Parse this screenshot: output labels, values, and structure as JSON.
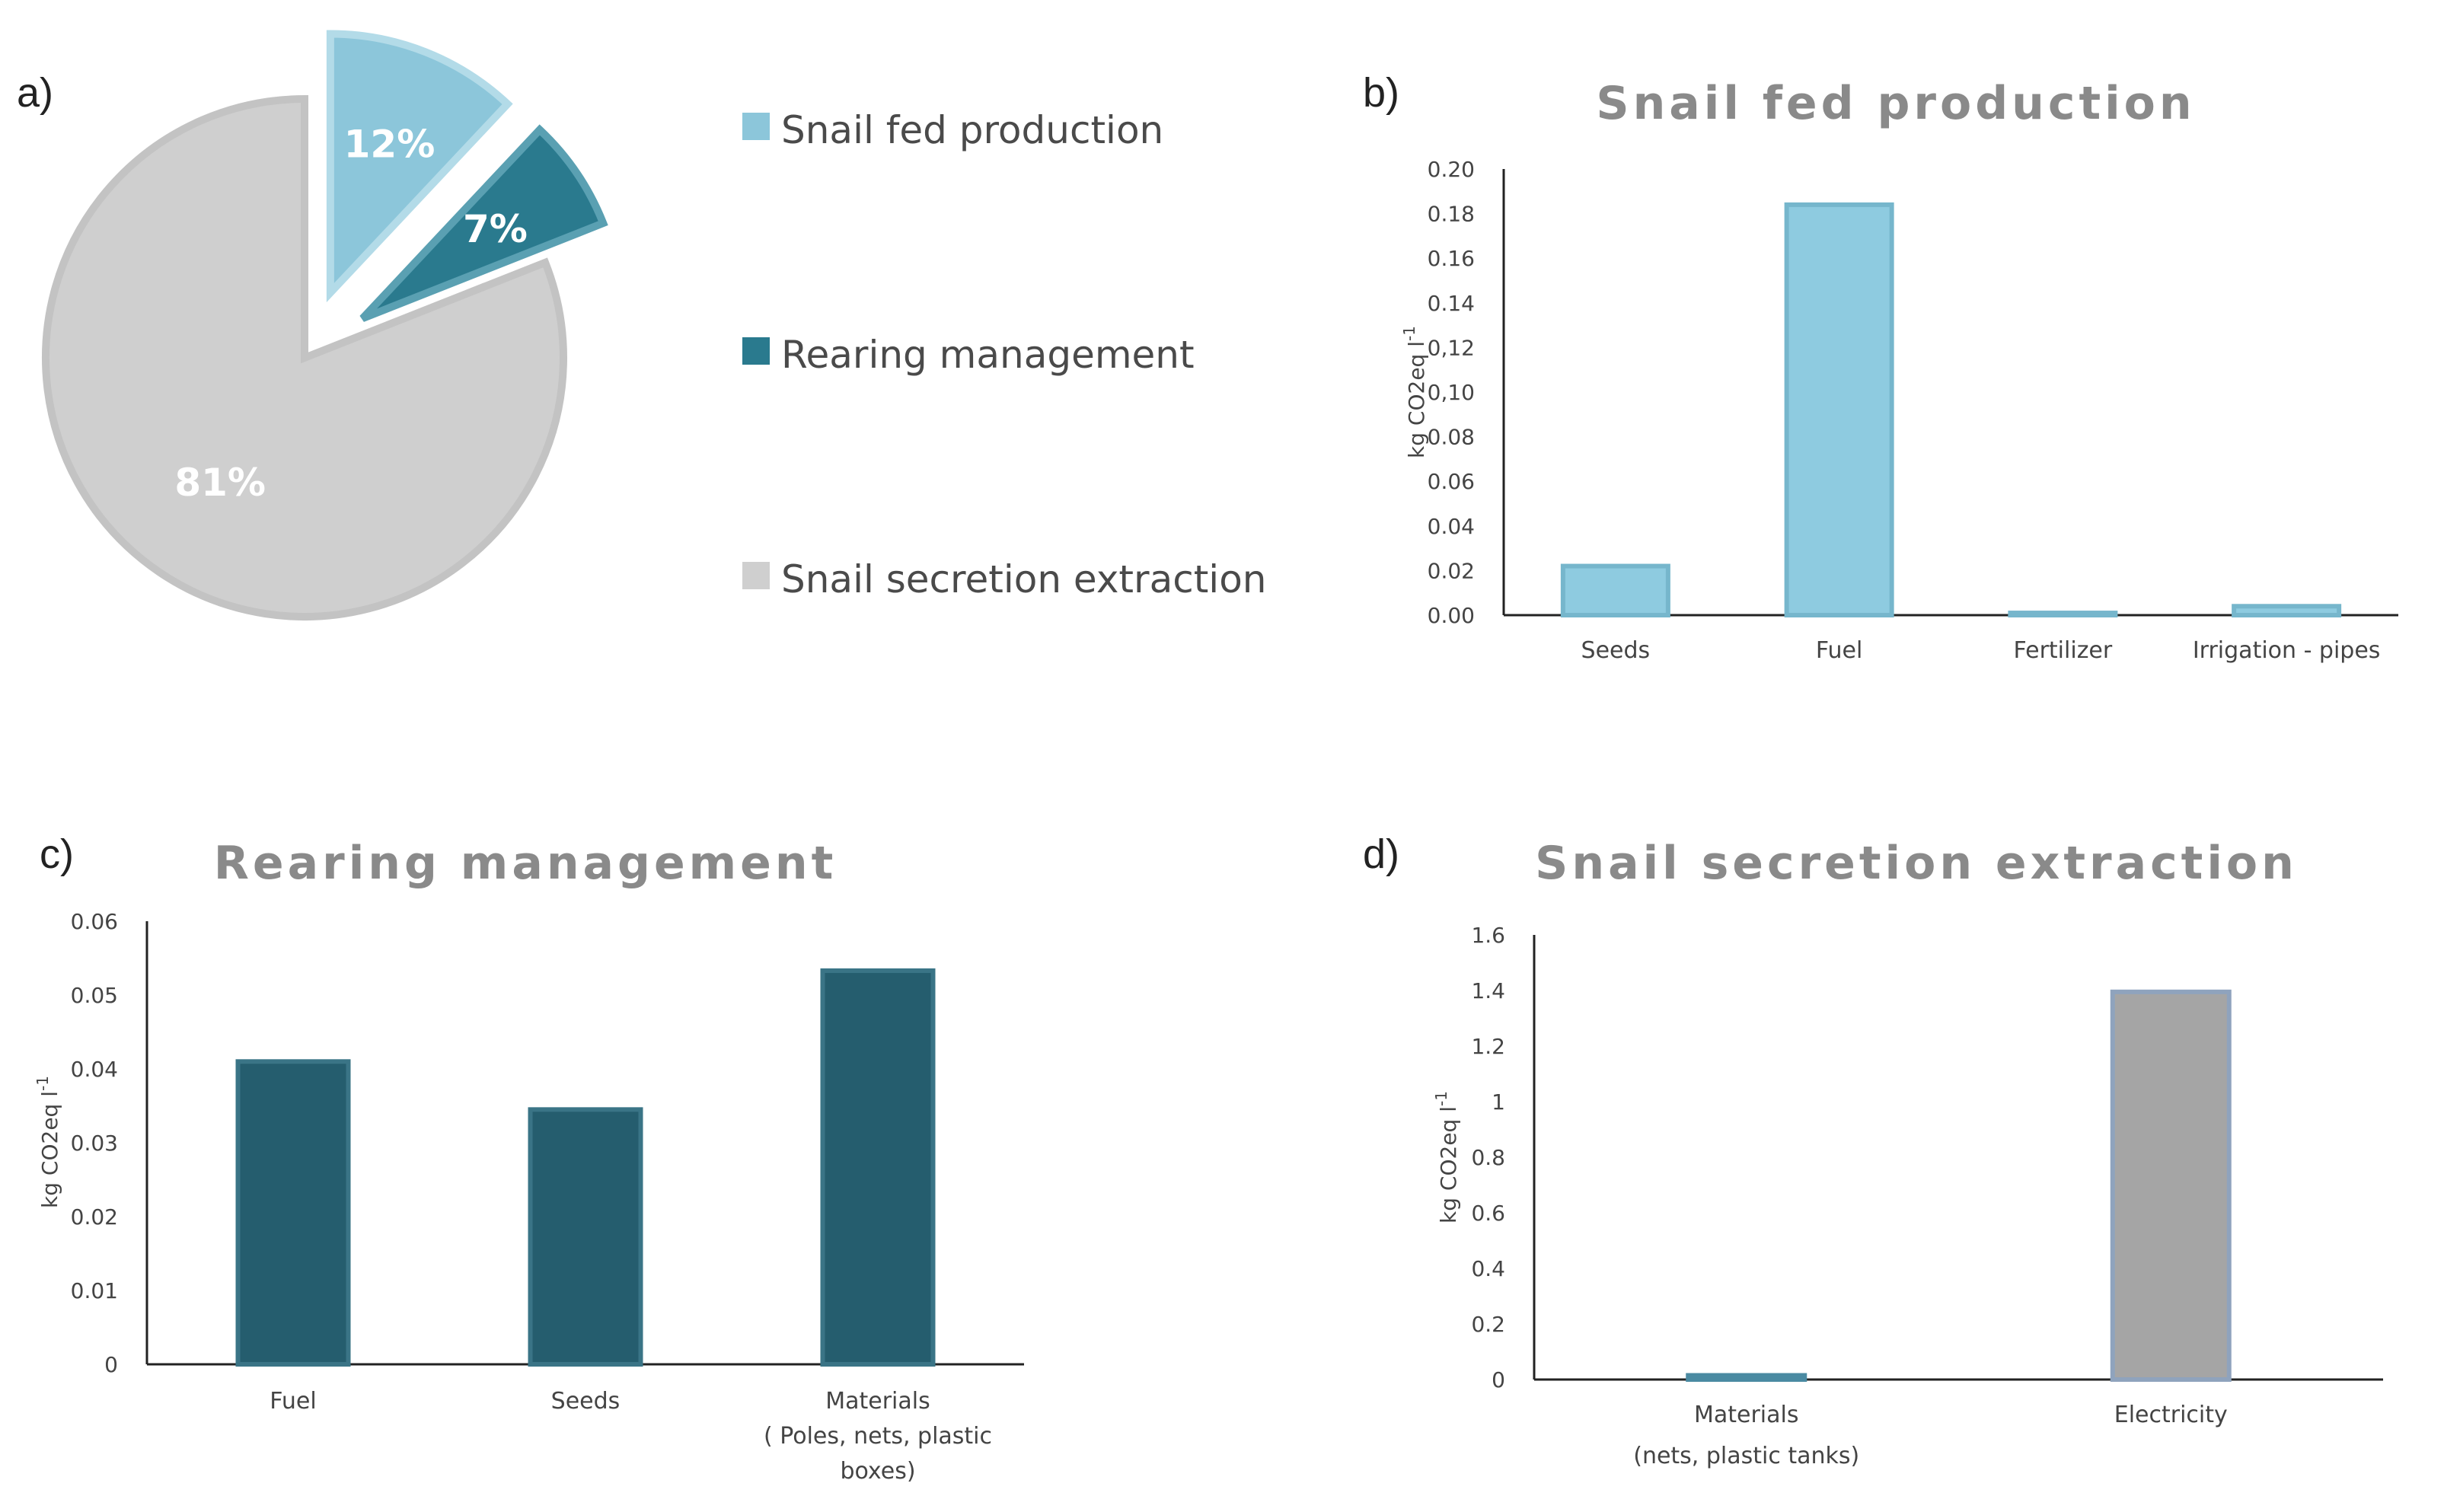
{
  "panels": {
    "a": "a)",
    "b": "b)",
    "c": "c)",
    "d": "d)"
  },
  "colors": {
    "light_blue": "#8cc6da",
    "teal": "#2a7a8e",
    "dark_teal": "#255d6e",
    "grey": "#cfcfcf",
    "grey_bar": "#a5a5a5"
  },
  "chart_data": [
    {
      "id": "pie",
      "type": "pie",
      "title": "",
      "slices": [
        {
          "name": "Snail fed production",
          "label": "12%",
          "value": 12,
          "color": "#8cc6da",
          "stroke": "#b3dbe8",
          "exploded": true
        },
        {
          "name": "Rearing management",
          "label": "7%",
          "value": 7,
          "color": "#2a7a8e",
          "stroke": "#5aa0b2",
          "exploded": true
        },
        {
          "name": "Snail secretion extraction",
          "label": "81%",
          "value": 81,
          "color": "#cfcfcf",
          "stroke": "#c3c3c3",
          "exploded": false
        }
      ],
      "legend": [
        {
          "label": "Snail fed production",
          "color": "#8cc6da"
        },
        {
          "label": "Rearing management",
          "color": "#2a7a8e"
        },
        {
          "label": "Snail secretion extraction",
          "color": "#cfcfcf"
        }
      ]
    },
    {
      "id": "b",
      "type": "bar",
      "title": "Snail fed production",
      "ylabel": "kg CO2eq l",
      "ylabel_sup": "-1",
      "ylim": [
        0,
        0.2
      ],
      "yticks": [
        "0.00",
        "0.02",
        "0.04",
        "0.06",
        "0.08",
        "0,10",
        "0,12",
        "0.14",
        "0.16",
        "0.18",
        "0.20"
      ],
      "categories": [
        [
          "Seeds"
        ],
        [
          "Fuel"
        ],
        [
          "Fertilizer"
        ],
        [
          "Irrigation - pipes"
        ]
      ],
      "values": [
        0.022,
        0.184,
        0.001,
        0.004
      ],
      "color": "#8ecbe0",
      "stroke": "#76b6cc"
    },
    {
      "id": "c",
      "type": "bar",
      "title": "Rearing management",
      "ylabel": "kg CO2eq l",
      "ylabel_sup": "-1",
      "ylim": [
        0,
        0.06
      ],
      "yticks": [
        "0",
        "0.01",
        "0.02",
        "0.03",
        "0.04",
        "0.05",
        "0.06"
      ],
      "categories": [
        [
          "Fuel"
        ],
        [
          "Seeds"
        ],
        [
          "Materials",
          "( Poles, nets, plastic",
          "boxes)"
        ]
      ],
      "values": [
        0.041,
        0.0345,
        0.0533
      ],
      "color": "#255d6e",
      "stroke": "#3a7486"
    },
    {
      "id": "d",
      "type": "bar",
      "title": "Snail secretion extraction",
      "ylabel": "kg CO2eq l",
      "ylabel_sup": "-1",
      "ylim": [
        0,
        1.6
      ],
      "yticks": [
        "0",
        "0.2",
        "0.4",
        "0.6",
        "0.8",
        "1",
        "1.2",
        "1.4",
        "1.6"
      ],
      "categories": [
        [
          "Materials",
          "(nets, plastic  tanks)"
        ],
        [
          "Electricity"
        ]
      ],
      "values": [
        0.015,
        1.395
      ],
      "colors": [
        "#2a6f88",
        "#a5a5a5"
      ],
      "strokes": [
        "#4a8aa2",
        "#8fa3bd"
      ]
    }
  ]
}
